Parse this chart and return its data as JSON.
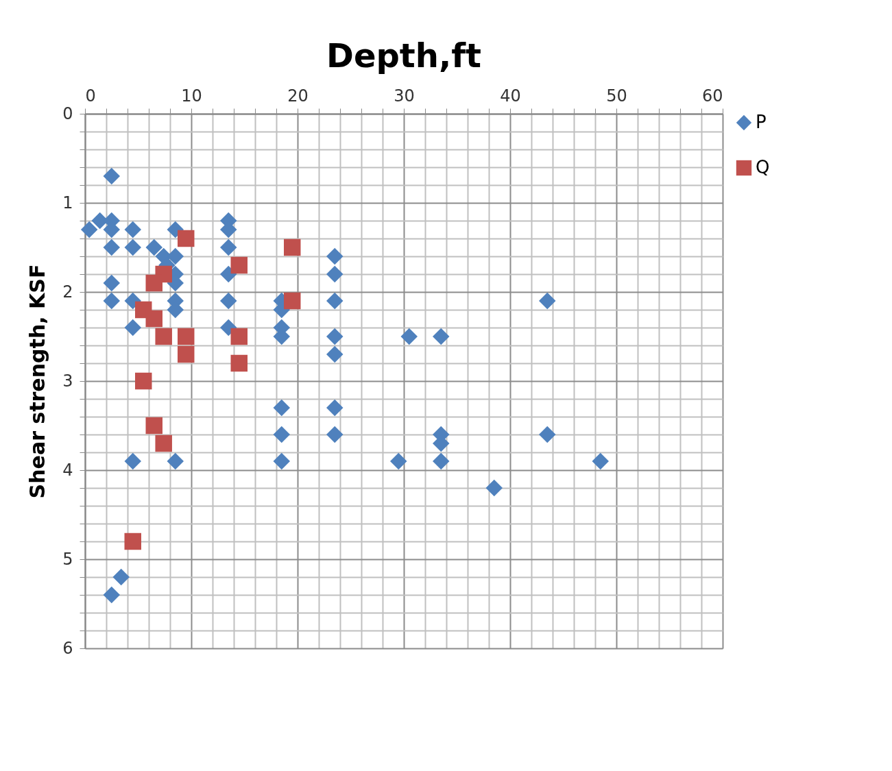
{
  "chart_data": {
    "type": "scatter",
    "title": "Depth,ft",
    "ylabel": "Shear strength, KSF",
    "xlim": [
      0,
      60
    ],
    "ylim": [
      6,
      0
    ],
    "xticks": [
      0,
      {
        "value": 2,
        "label": null
      },
      {
        "value": 4,
        "label": null
      },
      {
        "value": 6,
        "label": null
      },
      {
        "value": 8,
        "label": null
      },
      10,
      {
        "value": 12,
        "label": null
      },
      {
        "value": 14,
        "label": null
      },
      {
        "value": 16,
        "label": null
      },
      {
        "value": 18,
        "label": null
      },
      20,
      {
        "value": 22,
        "label": null
      },
      {
        "value": 24,
        "label": null
      },
      {
        "value": 26,
        "label": null
      },
      {
        "value": 28,
        "label": null
      },
      30,
      {
        "value": 32,
        "label": null
      },
      {
        "value": 34,
        "label": null
      },
      {
        "value": 36,
        "label": null
      },
      {
        "value": 38,
        "label": null
      },
      40,
      {
        "value": 42,
        "label": null
      },
      {
        "value": 44,
        "label": null
      },
      {
        "value": 46,
        "label": null
      },
      {
        "value": 48,
        "label": null
      },
      50,
      {
        "value": 52,
        "label": null
      },
      {
        "value": 54,
        "label": null
      },
      {
        "value": 56,
        "label": null
      },
      {
        "value": 58,
        "label": null
      },
      60
    ],
    "yticks": [
      0,
      {
        "value": 0.2,
        "label": null
      },
      {
        "value": 0.4,
        "label": null
      },
      {
        "value": 0.6,
        "label": null
      },
      {
        "value": 0.8,
        "label": null
      },
      1,
      {
        "value": 1.2,
        "label": null
      },
      {
        "value": 1.4,
        "label": null
      },
      {
        "value": 1.6,
        "label": null
      },
      {
        "value": 1.8,
        "label": null
      },
      2,
      {
        "value": 2.2,
        "label": null
      },
      {
        "value": 2.4,
        "label": null
      },
      {
        "value": 2.6,
        "label": null
      },
      {
        "value": 2.8,
        "label": null
      },
      3,
      {
        "value": 3.2,
        "label": null
      },
      {
        "value": 3.4,
        "label": null
      },
      {
        "value": 3.6,
        "label": null
      },
      {
        "value": 3.8,
        "label": null
      },
      4,
      {
        "value": 4.2,
        "label": null
      },
      {
        "value": 4.4,
        "label": null
      },
      {
        "value": 4.6,
        "label": null
      },
      {
        "value": 4.8,
        "label": null
      },
      5,
      {
        "value": 5.2,
        "label": null
      },
      {
        "value": 5.4,
        "label": null
      },
      {
        "value": 5.6,
        "label": null
      },
      {
        "value": 5.8,
        "label": null
      },
      6
    ],
    "grid": true,
    "legend": "right",
    "series": [
      {
        "name": "P",
        "color": "#4f81bd",
        "marker": "diamond",
        "x": [
          2.5,
          0.4,
          1.4,
          2.5,
          2.5,
          2.5,
          4.5,
          4.5,
          2.5,
          2.5,
          4.5,
          4.5,
          6.5,
          7.4,
          7.7,
          8.5,
          8.5,
          8.5,
          8.5,
          8.5,
          8.5,
          4.5,
          8.5,
          3.4,
          2.5,
          13.5,
          13.5,
          13.5,
          13.5,
          13.5,
          13.5,
          18.5,
          18.5,
          18.5,
          18.5,
          18.5,
          18.5,
          18.5,
          23.5,
          23.5,
          23.5,
          23.5,
          23.5,
          23.5,
          23.5,
          30.5,
          33.5,
          29.5,
          33.5,
          33.5,
          33.5,
          38.5,
          43.5,
          43.5,
          48.5
        ],
        "values": [
          0.7,
          1.3,
          1.2,
          1.2,
          1.3,
          1.5,
          1.3,
          1.5,
          1.9,
          2.1,
          2.1,
          2.4,
          1.5,
          1.6,
          1.7,
          1.3,
          1.6,
          1.8,
          1.9,
          2.1,
          2.2,
          3.9,
          3.9,
          5.2,
          5.4,
          1.2,
          1.3,
          1.5,
          1.8,
          2.1,
          2.4,
          2.1,
          2.2,
          2.4,
          2.5,
          3.3,
          3.6,
          3.9,
          1.6,
          1.8,
          2.1,
          2.5,
          2.7,
          3.3,
          3.6,
          2.5,
          2.5,
          3.9,
          3.6,
          3.7,
          3.9,
          4.2,
          2.1,
          3.6,
          3.9
        ]
      },
      {
        "name": "Q",
        "color": "#c0504d",
        "marker": "square",
        "x": [
          9.5,
          19.5,
          14.5,
          19.5,
          7.4,
          6.5,
          5.5,
          6.5,
          7.4,
          9.5,
          9.5,
          14.5,
          14.5,
          5.5,
          6.5,
          7.4,
          4.5
        ],
        "values": [
          1.4,
          1.5,
          1.7,
          2.1,
          1.8,
          1.9,
          2.2,
          2.3,
          2.5,
          2.5,
          2.7,
          2.5,
          2.8,
          3.0,
          3.5,
          3.7,
          4.8
        ]
      }
    ]
  }
}
